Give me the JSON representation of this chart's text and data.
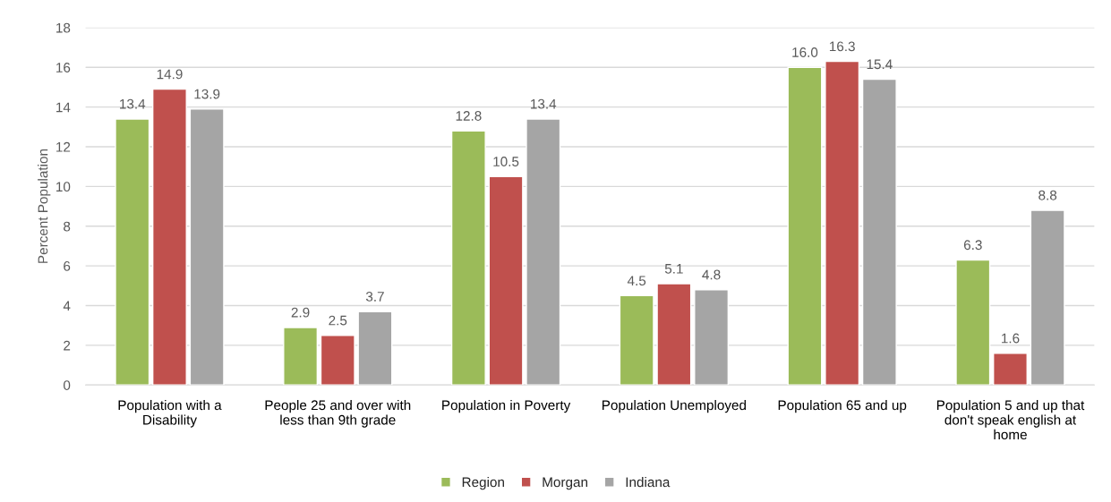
{
  "chart_data": {
    "type": "bar",
    "ylabel": "Percent Population",
    "categories": [
      "Population with a\nDisability",
      "People 25 and over with\nless than 9th grade",
      "Population in Poverty",
      "Population Unemployed",
      "Population 65 and up",
      "Population 5 and up that\ndon't speak english at\nhome"
    ],
    "series": [
      {
        "name": "Region",
        "color": "#9bbb59",
        "values": [
          13.4,
          2.9,
          12.8,
          4.5,
          16.0,
          6.3
        ],
        "value_labels": [
          "13.4",
          "2.9",
          "12.8",
          "4.5",
          "16.0",
          "6.3"
        ]
      },
      {
        "name": "Morgan",
        "color": "#c0504d",
        "values": [
          14.9,
          2.5,
          10.5,
          5.1,
          16.3,
          1.6
        ],
        "value_labels": [
          "14.9",
          "2.5",
          "10.5",
          "5.1",
          "16.3",
          "1.6"
        ]
      },
      {
        "name": "Indiana",
        "color": "#a5a5a5",
        "values": [
          13.9,
          3.7,
          13.4,
          4.8,
          15.4,
          8.8
        ],
        "value_labels": [
          "13.9",
          "3.7",
          "13.4",
          "4.8",
          "15.4",
          "8.8"
        ]
      }
    ],
    "ylim": [
      0,
      18
    ],
    "yticks": [
      0,
      2,
      4,
      6,
      8,
      10,
      12,
      14,
      16,
      18
    ],
    "grid": "y",
    "legend": "bottom"
  }
}
